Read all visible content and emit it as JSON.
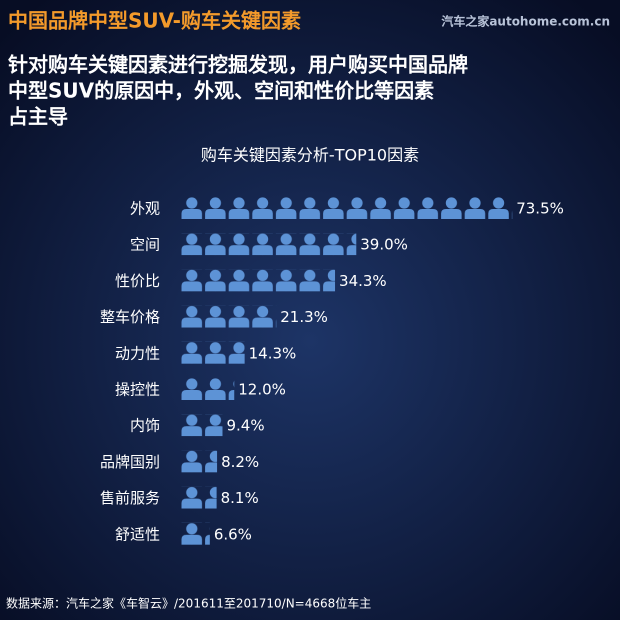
{
  "chart_data": {
    "type": "pictogram-bar",
    "title": "中国品牌中型SUV-购车关键因素",
    "watermark": "汽车之家autohome.com.cn",
    "subtitle": [
      "针对购车关键因素进行挖掘发现，用户购买中国品牌",
      "中型SUV的原因中，外观、空间和性价比等因素",
      "占主导"
    ],
    "chart_title": "购车关键因素分析-TOP10因素",
    "categories": [
      "外观",
      "空间",
      "性价比",
      "整车价格",
      "动力性",
      "操控性",
      "内饰",
      "品牌国别",
      "售前服务",
      "舒适性"
    ],
    "values": [
      73.5,
      39.0,
      34.3,
      21.3,
      14.3,
      12.0,
      9.4,
      8.2,
      8.1,
      6.6
    ],
    "value_labels": [
      "73.5%",
      "39.0%",
      "34.3%",
      "21.3%",
      "14.3%",
      "12.0%",
      "9.4%",
      "8.2%",
      "8.1%",
      "6.6%"
    ],
    "color": "#5d93d6",
    "source": "数据来源：汽车之家《车智云》/201611至201710/N=4668位车主"
  }
}
